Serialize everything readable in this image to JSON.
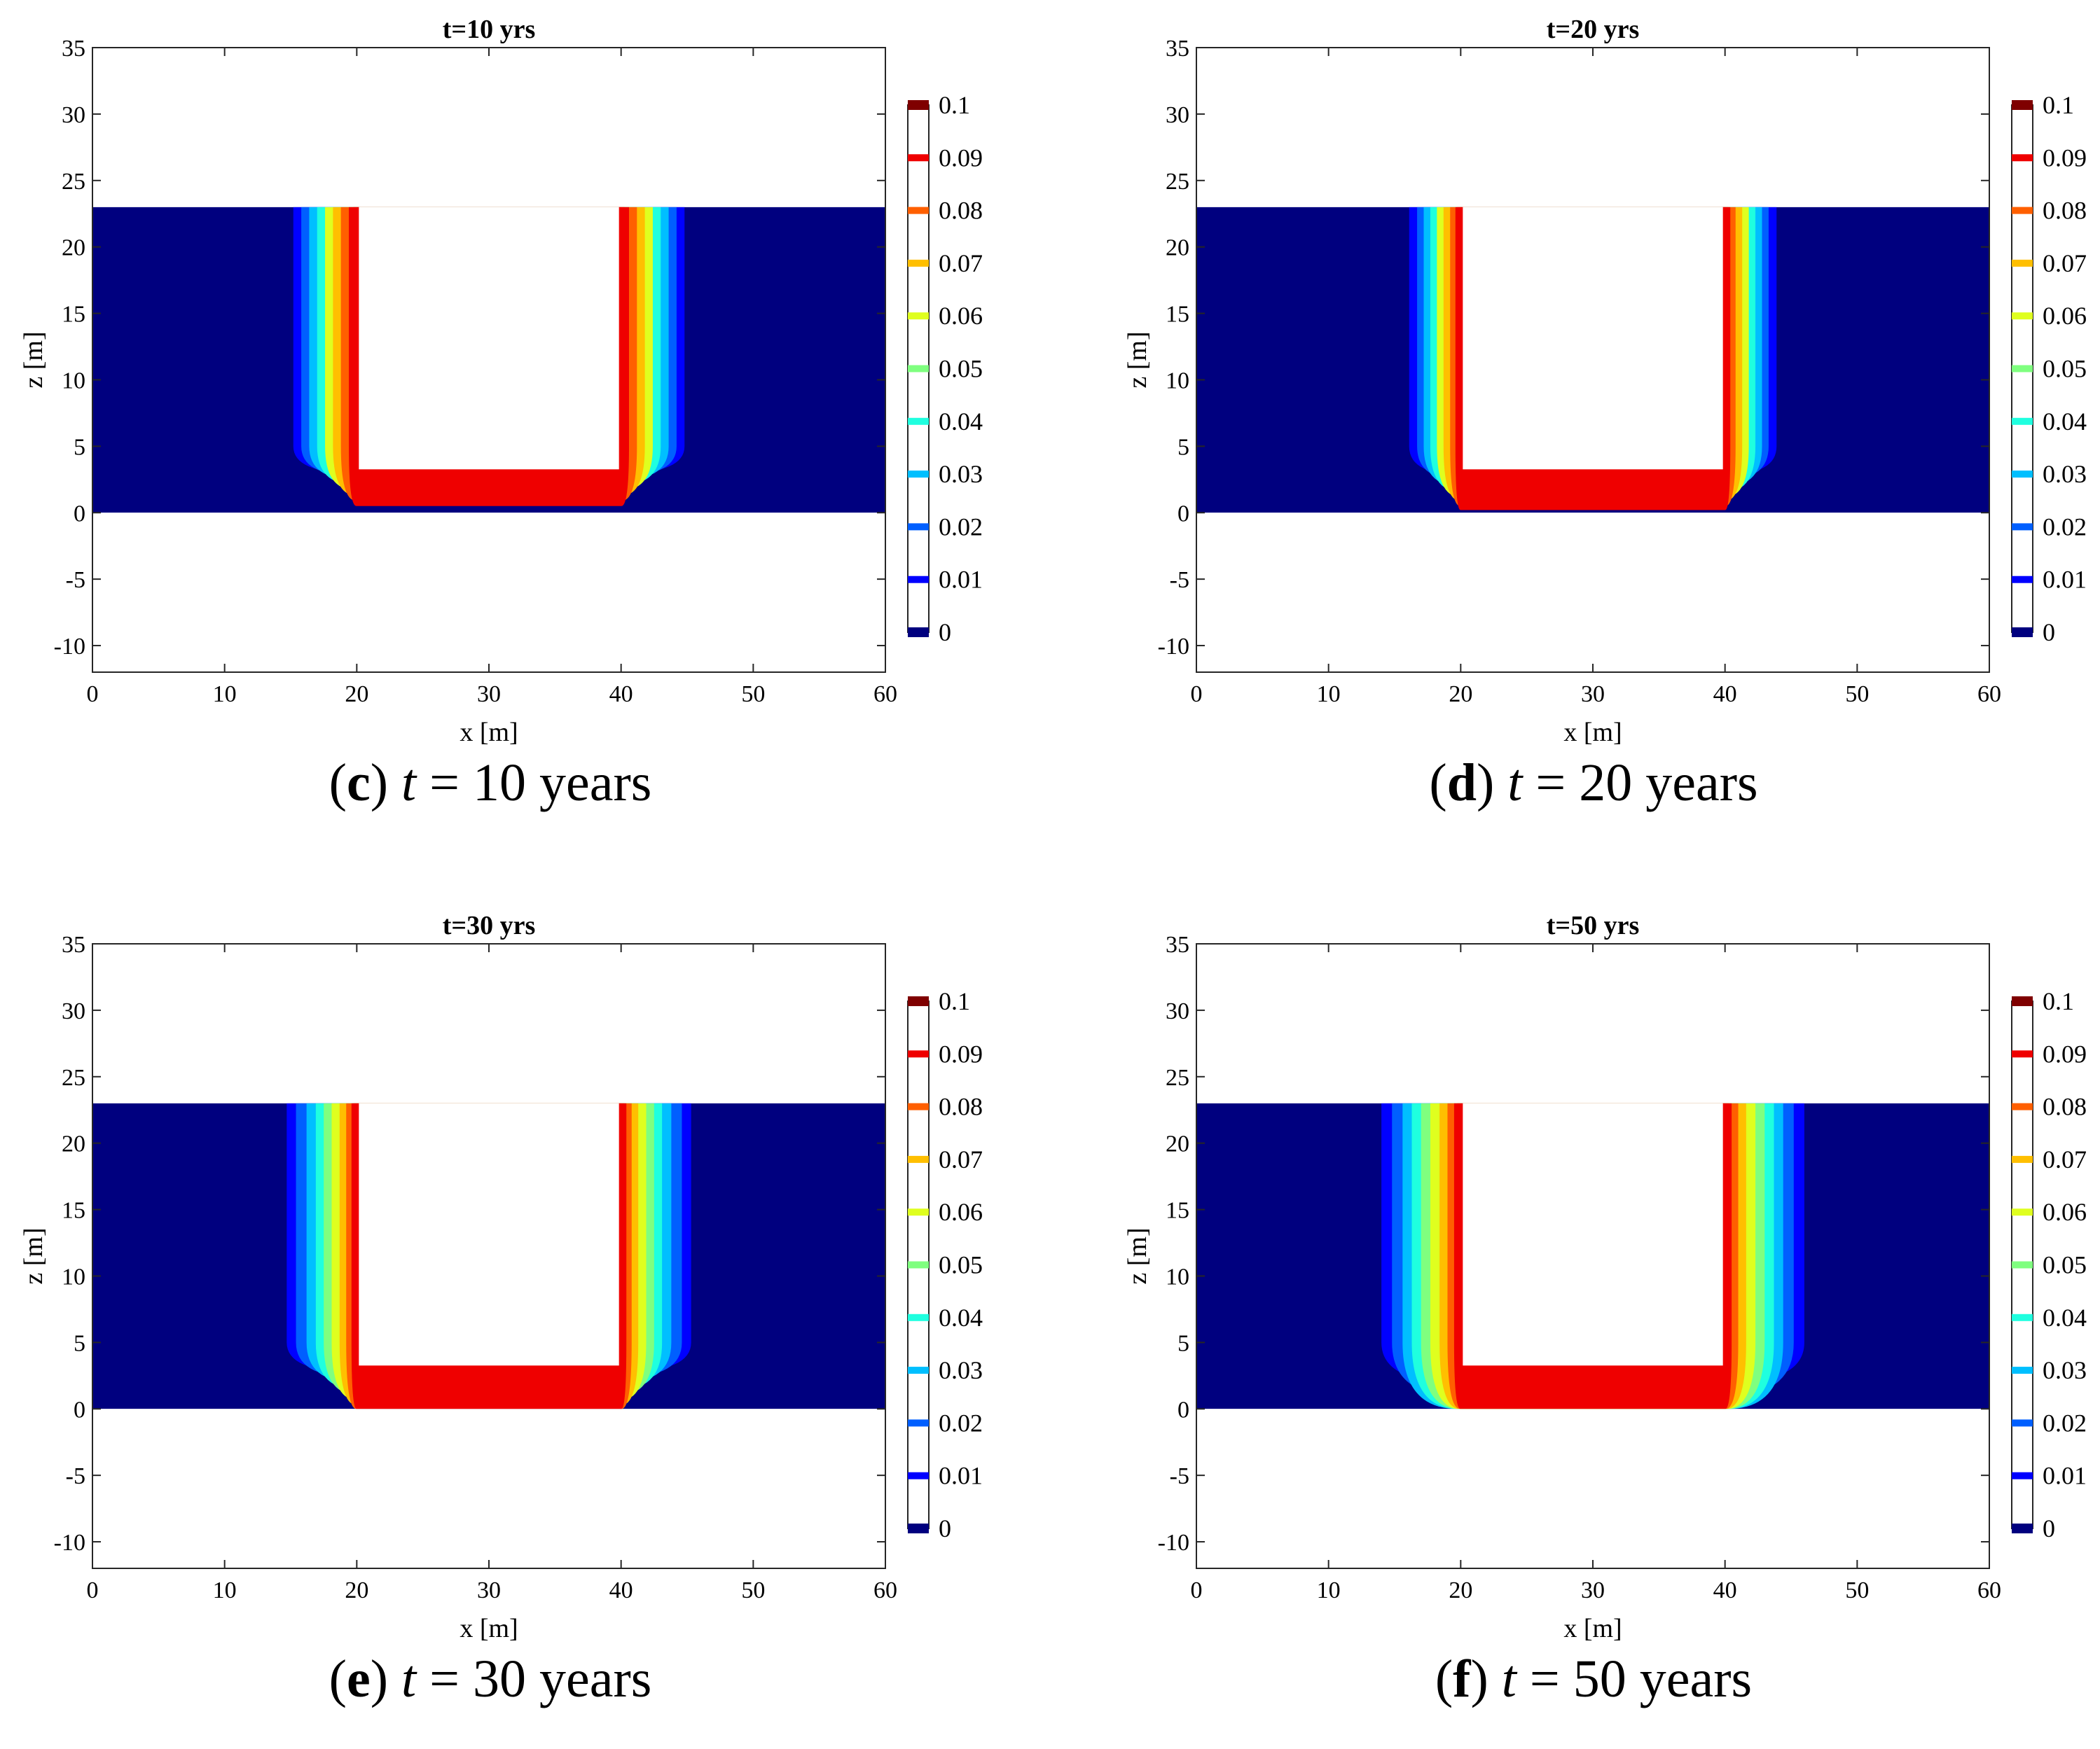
{
  "chart_data": [
    {
      "type": "heatmap",
      "title": "t=10 yrs",
      "caption": {
        "letter": "c",
        "text_before": "(",
        "text_after": ")",
        "tvar": "t",
        "equation": "= 10 years"
      },
      "xlabel": "x [m]",
      "ylabel": "z [m]",
      "xlim": [
        0,
        60
      ],
      "ylim": [
        -12,
        35
      ],
      "xticks": [
        "0",
        "10",
        "20",
        "30",
        "40",
        "50",
        "60"
      ],
      "yticks": [
        "-10",
        "-5",
        "0",
        "5",
        "10",
        "15",
        "20",
        "25",
        "30",
        "35"
      ],
      "domain": {
        "x": [
          0,
          60
        ],
        "z": [
          0,
          23
        ]
      },
      "trench": {
        "x": [
          20,
          40
        ],
        "z_bottom": 3,
        "z_top": 23
      },
      "concentration_at_trench": 0.1,
      "plume_width_m": [
        0.6,
        1.2,
        1.8,
        2.4,
        3.0,
        3.6,
        4.2,
        4.8
      ],
      "plume_bottom_m": [
        0.5,
        0.9,
        1.3,
        1.7,
        2.1,
        2.5,
        2.8,
        3.0
      ],
      "colorbar": {
        "ticks": [
          "0",
          "0.01",
          "0.02",
          "0.03",
          "0.04",
          "0.05",
          "0.06",
          "0.07",
          "0.08",
          "0.09",
          "0.1"
        ],
        "colors": [
          "#00007f",
          "#0000ff",
          "#005fff",
          "#00bfff",
          "#1fffdf",
          "#7fff7f",
          "#dfff1f",
          "#ffbf00",
          "#ff5f00",
          "#ef0000",
          "#7f0000"
        ]
      }
    },
    {
      "type": "heatmap",
      "title": "t=20 yrs",
      "caption": {
        "letter": "d",
        "text_before": "(",
        "text_after": ")",
        "tvar": "t",
        "equation": "= 20 years"
      },
      "xlabel": "x [m]",
      "ylabel": "z [m]",
      "xlim": [
        0,
        60
      ],
      "ylim": [
        -12,
        35
      ],
      "xticks": [
        "0",
        "10",
        "20",
        "30",
        "40",
        "50",
        "60"
      ],
      "yticks": [
        "-10",
        "-5",
        "0",
        "5",
        "10",
        "15",
        "20",
        "25",
        "30",
        "35"
      ],
      "domain": {
        "x": [
          0,
          60
        ],
        "z": [
          0,
          23
        ]
      },
      "trench": {
        "x": [
          20,
          40
        ],
        "z_bottom": 3,
        "z_top": 23
      },
      "concentration_at_trench": 0.1,
      "plume_width_m": [
        0.4,
        0.8,
        1.3,
        1.8,
        2.3,
        2.8,
        3.3,
        3.9
      ],
      "plume_bottom_m": [
        0.2,
        0.5,
        0.9,
        1.2,
        1.6,
        2.0,
        2.5,
        2.9
      ],
      "colorbar": {
        "ticks": [
          "0",
          "0.01",
          "0.02",
          "0.03",
          "0.04",
          "0.05",
          "0.06",
          "0.07",
          "0.08",
          "0.09",
          "0.1"
        ],
        "colors": [
          "#00007f",
          "#0000ff",
          "#005fff",
          "#00bfff",
          "#1fffdf",
          "#7fff7f",
          "#dfff1f",
          "#ffbf00",
          "#ff5f00",
          "#ef0000",
          "#7f0000"
        ]
      }
    },
    {
      "type": "heatmap",
      "title": "t=30 yrs",
      "caption": {
        "letter": "e",
        "text_before": "(",
        "text_after": ")",
        "tvar": "t",
        "equation": "= 30 years"
      },
      "xlabel": "x [m]",
      "ylabel": "z [m]",
      "xlim": [
        0,
        60
      ],
      "ylim": [
        -12,
        35
      ],
      "xticks": [
        "0",
        "10",
        "20",
        "30",
        "40",
        "50",
        "60"
      ],
      "yticks": [
        "-10",
        "-5",
        "0",
        "5",
        "10",
        "15",
        "20",
        "25",
        "30",
        "35"
      ],
      "domain": {
        "x": [
          0,
          60
        ],
        "z": [
          0,
          23
        ]
      },
      "trench": {
        "x": [
          20,
          40
        ],
        "z_bottom": 3,
        "z_top": 23
      },
      "concentration_at_trench": 0.1,
      "plume_width_m": [
        0.4,
        0.8,
        1.3,
        1.9,
        2.5,
        3.1,
        3.8,
        4.6,
        5.3
      ],
      "plume_bottom_m": [
        0.0,
        0.0,
        0.3,
        0.7,
        1.1,
        1.5,
        2.0,
        2.4,
        2.8
      ],
      "colorbar": {
        "ticks": [
          "0",
          "0.01",
          "0.02",
          "0.03",
          "0.04",
          "0.05",
          "0.06",
          "0.07",
          "0.08",
          "0.09",
          "0.1"
        ],
        "colors": [
          "#00007f",
          "#0000ff",
          "#005fff",
          "#00bfff",
          "#1fffdf",
          "#7fff7f",
          "#dfff1f",
          "#ffbf00",
          "#ff5f00",
          "#ef0000",
          "#7f0000"
        ]
      }
    },
    {
      "type": "heatmap",
      "title": "t=50 yrs",
      "caption": {
        "letter": "f",
        "text_before": "(",
        "text_after": ")",
        "tvar": "t",
        "equation": "= 50 years"
      },
      "xlabel": "x [m]",
      "ylabel": "z [m]",
      "xlim": [
        0,
        60
      ],
      "ylim": [
        -12,
        35
      ],
      "xticks": [
        "0",
        "10",
        "20",
        "30",
        "40",
        "50",
        "60"
      ],
      "yticks": [
        "-10",
        "-5",
        "0",
        "5",
        "10",
        "15",
        "20",
        "25",
        "30",
        "35"
      ],
      "domain": {
        "x": [
          0,
          60
        ],
        "z": [
          0,
          23
        ]
      },
      "trench": {
        "x": [
          20,
          40
        ],
        "z_bottom": 3,
        "z_top": 23
      },
      "concentration_at_trench": 0.1,
      "plume_width_m": [
        0.5,
        1.0,
        1.6,
        2.3,
        3.0,
        3.7,
        4.4,
        5.2,
        6.0
      ],
      "plume_bottom_m": [
        0.0,
        0.0,
        0.0,
        0.0,
        0.0,
        0.0,
        0.0,
        1.0,
        2.0
      ],
      "colorbar": {
        "ticks": [
          "0",
          "0.01",
          "0.02",
          "0.03",
          "0.04",
          "0.05",
          "0.06",
          "0.07",
          "0.08",
          "0.09",
          "0.1"
        ],
        "colors": [
          "#00007f",
          "#0000ff",
          "#005fff",
          "#00bfff",
          "#1fffdf",
          "#7fff7f",
          "#dfff1f",
          "#ffbf00",
          "#ff5f00",
          "#ef0000",
          "#7f0000"
        ]
      }
    }
  ]
}
